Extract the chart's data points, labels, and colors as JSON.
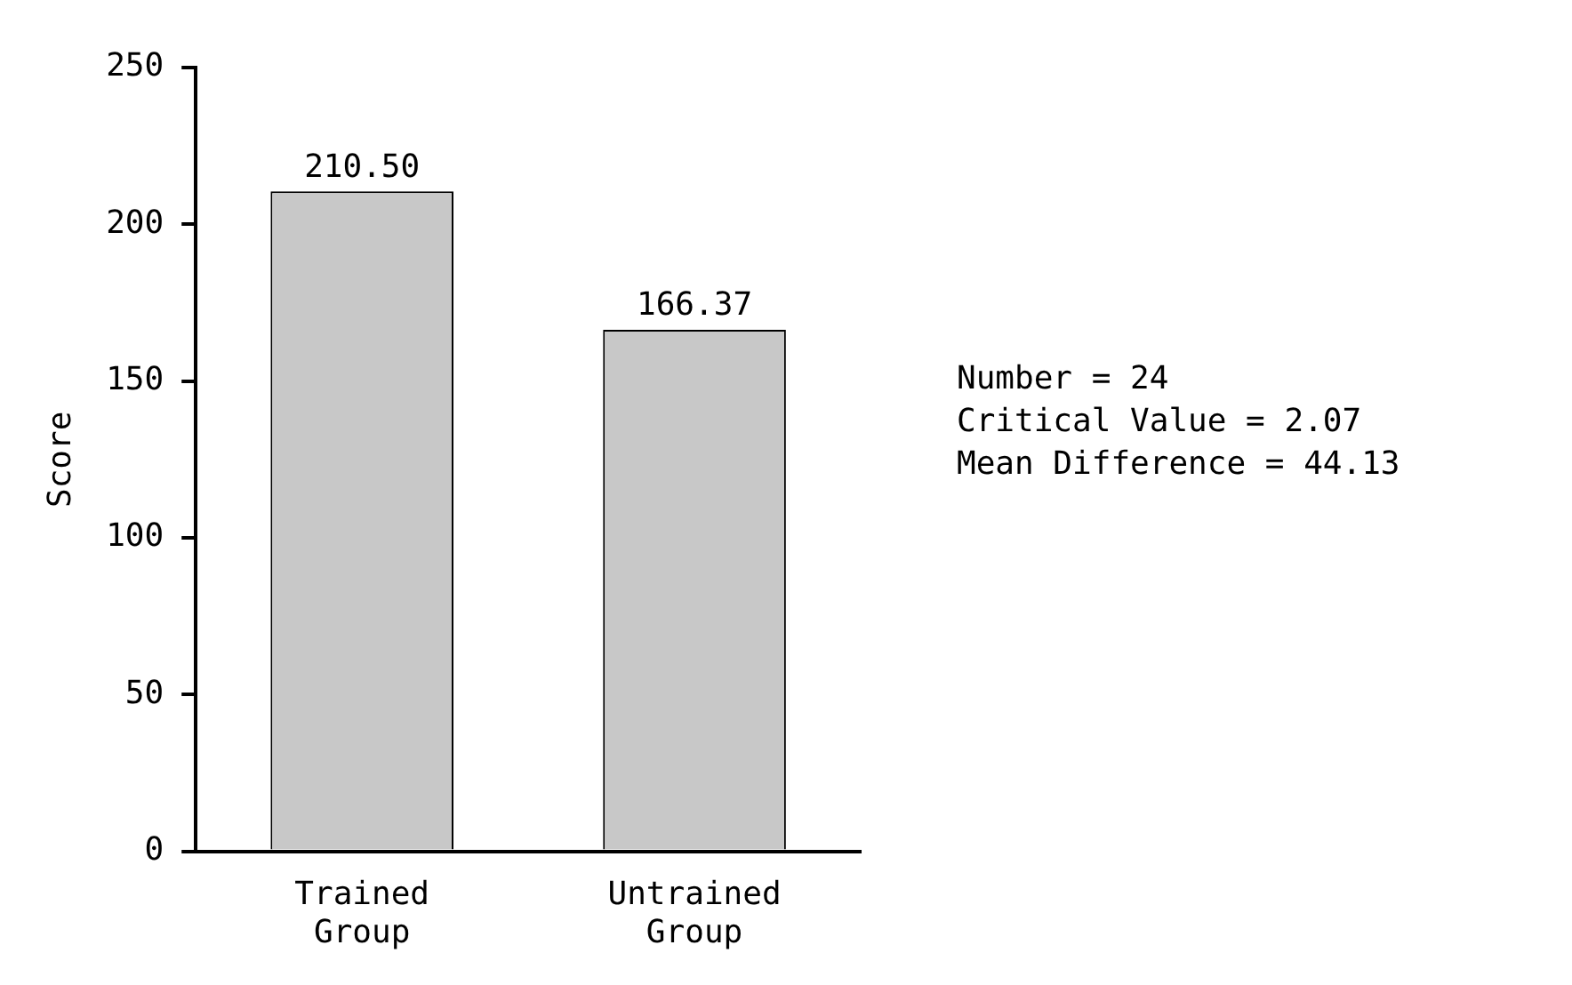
{
  "chart_data": {
    "type": "bar",
    "ylabel": "Score",
    "categories": [
      "Trained Group",
      "Untrained Group"
    ],
    "values": [
      210.5,
      166.37
    ],
    "value_labels": [
      "210.50",
      "166.37"
    ],
    "color": "#c8c8c8",
    "ylim": [
      0,
      250
    ],
    "yticks": [
      0,
      50,
      100,
      150,
      200,
      250
    ],
    "grid": false,
    "legend": false,
    "annotations": [
      "Number = 24",
      "Critical Value = 2.07",
      "Mean Difference = 44.13"
    ]
  }
}
